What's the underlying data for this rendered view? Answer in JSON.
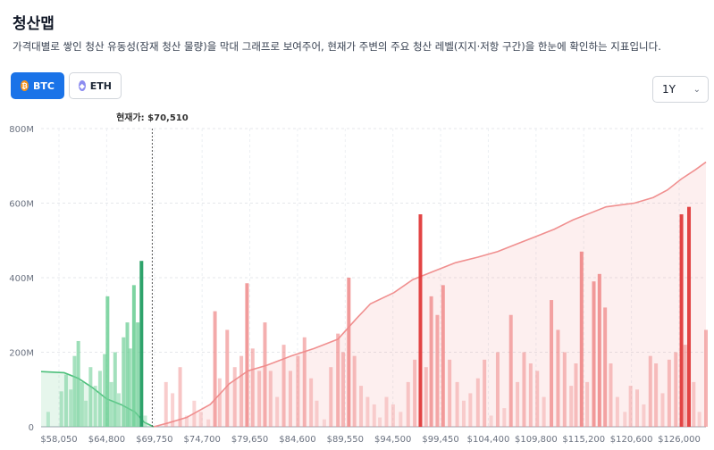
{
  "page": {
    "title": "청산맵",
    "description": "가격대별로 쌓인 청산 유동성(잠재 청산 물량)을 막대 그래프로 보여주어, 현재가 주변의 주요 청산 레벨(지지·저항 구간)을 한눈에 확인하는 지표입니다."
  },
  "coins": [
    {
      "label": "BTC",
      "icon": "bitcoin-icon",
      "active": true
    },
    {
      "label": "ETH",
      "icon": "ethereum-icon",
      "active": false
    }
  ],
  "range": {
    "selected": "1Y"
  },
  "colors": {
    "long_bar": "#6fcf97",
    "long_bar_dark": "#2ea36b",
    "short_bar": "#ef8a8a",
    "short_bar_dark": "#e03a3a",
    "long_area": "#4cbf7a",
    "short_area": "#f08f8f",
    "accent": "#1a73e8"
  },
  "chart_data": {
    "type": "bar",
    "current_price_label": "현재가: $70,510",
    "current_price": 70510,
    "ylim": [
      0,
      800
    ],
    "y_ticks": [
      "0",
      "200M",
      "400M",
      "600M",
      "800M"
    ],
    "x_ticks": [
      "$58,050",
      "$64,800",
      "$69,750",
      "$74,700",
      "$79,650",
      "$84,600",
      "$89,550",
      "$94,500",
      "$99,450",
      "$104,400",
      "$109,800",
      "$115,200",
      "$120,600",
      "$126,000"
    ],
    "long_bars": [
      {
        "x": 58050,
        "v": 0
      },
      {
        "x": 58800,
        "v": 40
      },
      {
        "x": 59500,
        "v": 0
      },
      {
        "x": 60200,
        "v": 95
      },
      {
        "x": 60700,
        "v": 140
      },
      {
        "x": 61200,
        "v": 100
      },
      {
        "x": 61600,
        "v": 190
      },
      {
        "x": 62000,
        "v": 230
      },
      {
        "x": 62400,
        "v": 120
      },
      {
        "x": 62800,
        "v": 70
      },
      {
        "x": 63300,
        "v": 160
      },
      {
        "x": 63800,
        "v": 110
      },
      {
        "x": 64300,
        "v": 150
      },
      {
        "x": 64800,
        "v": 195
      },
      {
        "x": 65100,
        "v": 350
      },
      {
        "x": 65500,
        "v": 120
      },
      {
        "x": 65900,
        "v": 200
      },
      {
        "x": 66300,
        "v": 90
      },
      {
        "x": 66800,
        "v": 240
      },
      {
        "x": 67200,
        "v": 280
      },
      {
        "x": 67500,
        "v": 210
      },
      {
        "x": 67900,
        "v": 380
      },
      {
        "x": 68300,
        "v": 280
      },
      {
        "x": 68700,
        "v": 445
      },
      {
        "x": 69100,
        "v": 30
      }
    ],
    "long_cumulative": [
      {
        "x": 58050,
        "v": 148
      },
      {
        "x": 60500,
        "v": 145
      },
      {
        "x": 62000,
        "v": 130
      },
      {
        "x": 63500,
        "v": 105
      },
      {
        "x": 65000,
        "v": 75
      },
      {
        "x": 66500,
        "v": 60
      },
      {
        "x": 68000,
        "v": 40
      },
      {
        "x": 69000,
        "v": 12
      },
      {
        "x": 70000,
        "v": 0
      }
    ],
    "short_bars": [
      {
        "x": 71300,
        "v": 120
      },
      {
        "x": 72000,
        "v": 90
      },
      {
        "x": 72800,
        "v": 160
      },
      {
        "x": 73500,
        "v": 30
      },
      {
        "x": 74300,
        "v": 70
      },
      {
        "x": 75000,
        "v": 40
      },
      {
        "x": 75800,
        "v": 20
      },
      {
        "x": 76500,
        "v": 310
      },
      {
        "x": 77000,
        "v": 130
      },
      {
        "x": 77800,
        "v": 260
      },
      {
        "x": 78600,
        "v": 160
      },
      {
        "x": 79300,
        "v": 190
      },
      {
        "x": 79900,
        "v": 385
      },
      {
        "x": 80500,
        "v": 210
      },
      {
        "x": 81200,
        "v": 150
      },
      {
        "x": 81800,
        "v": 280
      },
      {
        "x": 82400,
        "v": 150
      },
      {
        "x": 83100,
        "v": 80
      },
      {
        "x": 83800,
        "v": 220
      },
      {
        "x": 84500,
        "v": 150
      },
      {
        "x": 85300,
        "v": 190
      },
      {
        "x": 86000,
        "v": 240
      },
      {
        "x": 86700,
        "v": 130
      },
      {
        "x": 87300,
        "v": 70
      },
      {
        "x": 88100,
        "v": 20
      },
      {
        "x": 88800,
        "v": 160
      },
      {
        "x": 89550,
        "v": 250
      },
      {
        "x": 90100,
        "v": 200
      },
      {
        "x": 90700,
        "v": 400
      },
      {
        "x": 91300,
        "v": 190
      },
      {
        "x": 92000,
        "v": 110
      },
      {
        "x": 92700,
        "v": 80
      },
      {
        "x": 93400,
        "v": 60
      },
      {
        "x": 94000,
        "v": 25
      },
      {
        "x": 94700,
        "v": 80
      },
      {
        "x": 95400,
        "v": 60
      },
      {
        "x": 96200,
        "v": 40
      },
      {
        "x": 97000,
        "v": 120
      },
      {
        "x": 97700,
        "v": 180
      },
      {
        "x": 98300,
        "v": 570
      },
      {
        "x": 98900,
        "v": 160
      },
      {
        "x": 99450,
        "v": 350
      },
      {
        "x": 100100,
        "v": 300
      },
      {
        "x": 100700,
        "v": 380
      },
      {
        "x": 101400,
        "v": 180
      },
      {
        "x": 102200,
        "v": 120
      },
      {
        "x": 102900,
        "v": 70
      },
      {
        "x": 103600,
        "v": 90
      },
      {
        "x": 104400,
        "v": 130
      },
      {
        "x": 105100,
        "v": 180
      },
      {
        "x": 105800,
        "v": 30
      },
      {
        "x": 106500,
        "v": 200
      },
      {
        "x": 107200,
        "v": 50
      },
      {
        "x": 107900,
        "v": 300
      },
      {
        "x": 108600,
        "v": 120
      },
      {
        "x": 109300,
        "v": 200
      },
      {
        "x": 110000,
        "v": 170
      },
      {
        "x": 110700,
        "v": 150
      },
      {
        "x": 111400,
        "v": 80
      },
      {
        "x": 112200,
        "v": 340
      },
      {
        "x": 112900,
        "v": 260
      },
      {
        "x": 113600,
        "v": 200
      },
      {
        "x": 114300,
        "v": 110
      },
      {
        "x": 114800,
        "v": 170
      },
      {
        "x": 115400,
        "v": 470
      },
      {
        "x": 116000,
        "v": 120
      },
      {
        "x": 116700,
        "v": 390
      },
      {
        "x": 117300,
        "v": 410
      },
      {
        "x": 117900,
        "v": 320
      },
      {
        "x": 118500,
        "v": 170
      },
      {
        "x": 119200,
        "v": 80
      },
      {
        "x": 120000,
        "v": 40
      },
      {
        "x": 120600,
        "v": 110
      },
      {
        "x": 121300,
        "v": 100
      },
      {
        "x": 122000,
        "v": 60
      },
      {
        "x": 122700,
        "v": 190
      },
      {
        "x": 123300,
        "v": 170
      },
      {
        "x": 124000,
        "v": 90
      },
      {
        "x": 124700,
        "v": 180
      },
      {
        "x": 125400,
        "v": 200
      },
      {
        "x": 126000,
        "v": 570
      },
      {
        "x": 126400,
        "v": 220
      },
      {
        "x": 126800,
        "v": 590
      },
      {
        "x": 127300,
        "v": 120
      },
      {
        "x": 127900,
        "v": 40
      },
      {
        "x": 128600,
        "v": 260
      }
    ],
    "short_cumulative": [
      {
        "x": 70000,
        "v": 0
      },
      {
        "x": 71500,
        "v": 10
      },
      {
        "x": 73500,
        "v": 25
      },
      {
        "x": 76000,
        "v": 60
      },
      {
        "x": 78000,
        "v": 115
      },
      {
        "x": 80000,
        "v": 150
      },
      {
        "x": 82000,
        "v": 165
      },
      {
        "x": 84600,
        "v": 190
      },
      {
        "x": 87000,
        "v": 210
      },
      {
        "x": 89550,
        "v": 235
      },
      {
        "x": 91500,
        "v": 290
      },
      {
        "x": 93000,
        "v": 330
      },
      {
        "x": 95500,
        "v": 360
      },
      {
        "x": 97500,
        "v": 395
      },
      {
        "x": 100000,
        "v": 420
      },
      {
        "x": 102000,
        "v": 440
      },
      {
        "x": 104400,
        "v": 455
      },
      {
        "x": 106500,
        "v": 470
      },
      {
        "x": 108500,
        "v": 490
      },
      {
        "x": 110500,
        "v": 510
      },
      {
        "x": 112500,
        "v": 530
      },
      {
        "x": 114500,
        "v": 555
      },
      {
        "x": 116500,
        "v": 575
      },
      {
        "x": 118000,
        "v": 590
      },
      {
        "x": 119500,
        "v": 595
      },
      {
        "x": 121000,
        "v": 600
      },
      {
        "x": 123000,
        "v": 615
      },
      {
        "x": 124500,
        "v": 635
      },
      {
        "x": 126000,
        "v": 665
      },
      {
        "x": 127500,
        "v": 690
      },
      {
        "x": 128600,
        "v": 710
      }
    ]
  }
}
